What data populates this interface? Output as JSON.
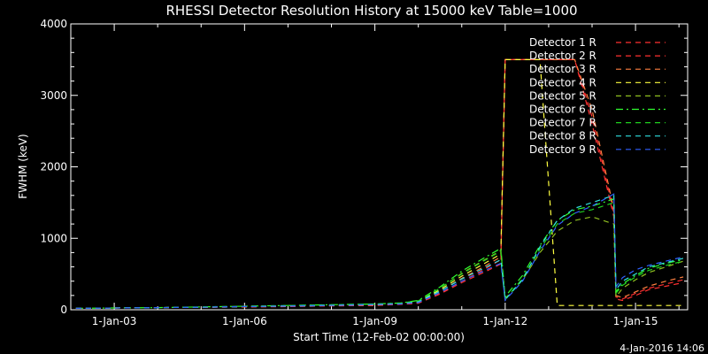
{
  "chart_data": {
    "type": "line",
    "title": "RHESSI Detector Resolution History at 15000 keV Table=1000",
    "xlabel": "Start Time (12-Feb-02 00:00:00)",
    "ylabel": "FWHM (keV)",
    "timestamp": "4-Jan-2016 14:06",
    "xlim": [
      2002.0,
      2016.2
    ],
    "ylim": [
      0,
      4000
    ],
    "x_ticks": [
      {
        "label": "1-Jan-03",
        "x": 2003.0
      },
      {
        "label": "1-Jan-06",
        "x": 2006.0
      },
      {
        "label": "1-Jan-09",
        "x": 2009.0
      },
      {
        "label": "1-Jan-12",
        "x": 2012.0
      },
      {
        "label": "1-Jan-15",
        "x": 2015.0
      }
    ],
    "y_ticks": [
      0,
      1000,
      2000,
      3000,
      4000
    ],
    "x": [
      2002.12,
      2003.0,
      2004.0,
      2005.0,
      2006.0,
      2007.0,
      2008.0,
      2009.0,
      2009.6,
      2010.0,
      2010.5,
      2011.0,
      2011.5,
      2011.9,
      2012.0,
      2012.1,
      2012.4,
      2012.8,
      2013.2,
      2013.6,
      2014.0,
      2014.5,
      2014.55,
      2014.7,
      2015.0,
      2015.3,
      2015.7,
      2016.1
    ],
    "series": [
      {
        "name": "Detector 1 R",
        "color": "#ff3030",
        "dash": "6,5",
        "values": [
          20,
          25,
          30,
          35,
          40,
          45,
          55,
          60,
          75,
          90,
          220,
          380,
          520,
          640,
          3500,
          3500,
          3500,
          3500,
          3500,
          3500,
          2600,
          1300,
          150,
          130,
          200,
          280,
          330,
          380
        ]
      },
      {
        "name": "Detector 2 R",
        "color": "#ff3030",
        "dash": "6,5",
        "values": [
          20,
          25,
          30,
          35,
          40,
          45,
          55,
          60,
          75,
          95,
          230,
          400,
          560,
          700,
          3500,
          3500,
          3500,
          3500,
          3500,
          3500,
          2700,
          1350,
          180,
          150,
          230,
          300,
          360,
          420
        ]
      },
      {
        "name": "Detector 3 R",
        "color": "#ff8040",
        "dash": "6,5",
        "values": [
          20,
          25,
          30,
          35,
          40,
          50,
          60,
          65,
          80,
          100,
          260,
          440,
          600,
          740,
          3500,
          3500,
          3500,
          3500,
          3500,
          3500,
          2800,
          1400,
          200,
          170,
          250,
          330,
          400,
          460
        ]
      },
      {
        "name": "Detector 4 R",
        "color": "#ffff40",
        "dash": "6,5",
        "values": [
          20,
          25,
          30,
          35,
          45,
          50,
          60,
          70,
          85,
          110,
          280,
          470,
          640,
          780,
          3500,
          3500,
          3500,
          3500,
          60,
          60,
          60,
          60,
          60,
          60,
          60,
          60,
          60,
          60
        ]
      },
      {
        "name": "Detector 5 R",
        "color": "#90c020",
        "dash": "6,5",
        "values": [
          20,
          25,
          30,
          35,
          45,
          55,
          65,
          75,
          90,
          120,
          300,
          510,
          690,
          830,
          160,
          220,
          420,
          800,
          1100,
          1250,
          1300,
          1200,
          180,
          300,
          420,
          520,
          600,
          680
        ]
      },
      {
        "name": "Detector 6 R",
        "color": "#30ff30",
        "dash": "8,4,2,4",
        "values": [
          20,
          25,
          30,
          40,
          50,
          60,
          70,
          80,
          95,
          130,
          320,
          540,
          720,
          860,
          180,
          260,
          480,
          900,
          1250,
          1400,
          1450,
          1550,
          250,
          360,
          480,
          580,
          650,
          700
        ]
      },
      {
        "name": "Detector 7 R",
        "color": "#20d020",
        "dash": "6,5",
        "values": [
          20,
          25,
          30,
          40,
          50,
          60,
          70,
          80,
          95,
          125,
          300,
          500,
          680,
          820,
          150,
          220,
          440,
          850,
          1200,
          1350,
          1400,
          1500,
          230,
          340,
          460,
          550,
          620,
          680
        ]
      },
      {
        "name": "Detector 8 R",
        "color": "#30e0e0",
        "dash": "6,5",
        "values": [
          20,
          25,
          30,
          35,
          45,
          55,
          65,
          75,
          85,
          110,
          260,
          430,
          580,
          700,
          140,
          210,
          420,
          880,
          1250,
          1420,
          1500,
          1600,
          280,
          400,
          500,
          600,
          660,
          720
        ]
      },
      {
        "name": "Detector 9 R",
        "color": "#3060ff",
        "dash": "6,5",
        "values": [
          20,
          25,
          30,
          35,
          45,
          50,
          60,
          70,
          80,
          100,
          240,
          400,
          540,
          650,
          130,
          200,
          400,
          820,
          1180,
          1350,
          1450,
          1620,
          320,
          450,
          560,
          620,
          680,
          740
        ]
      }
    ],
    "legend_placement": "top-right",
    "grid": false
  }
}
